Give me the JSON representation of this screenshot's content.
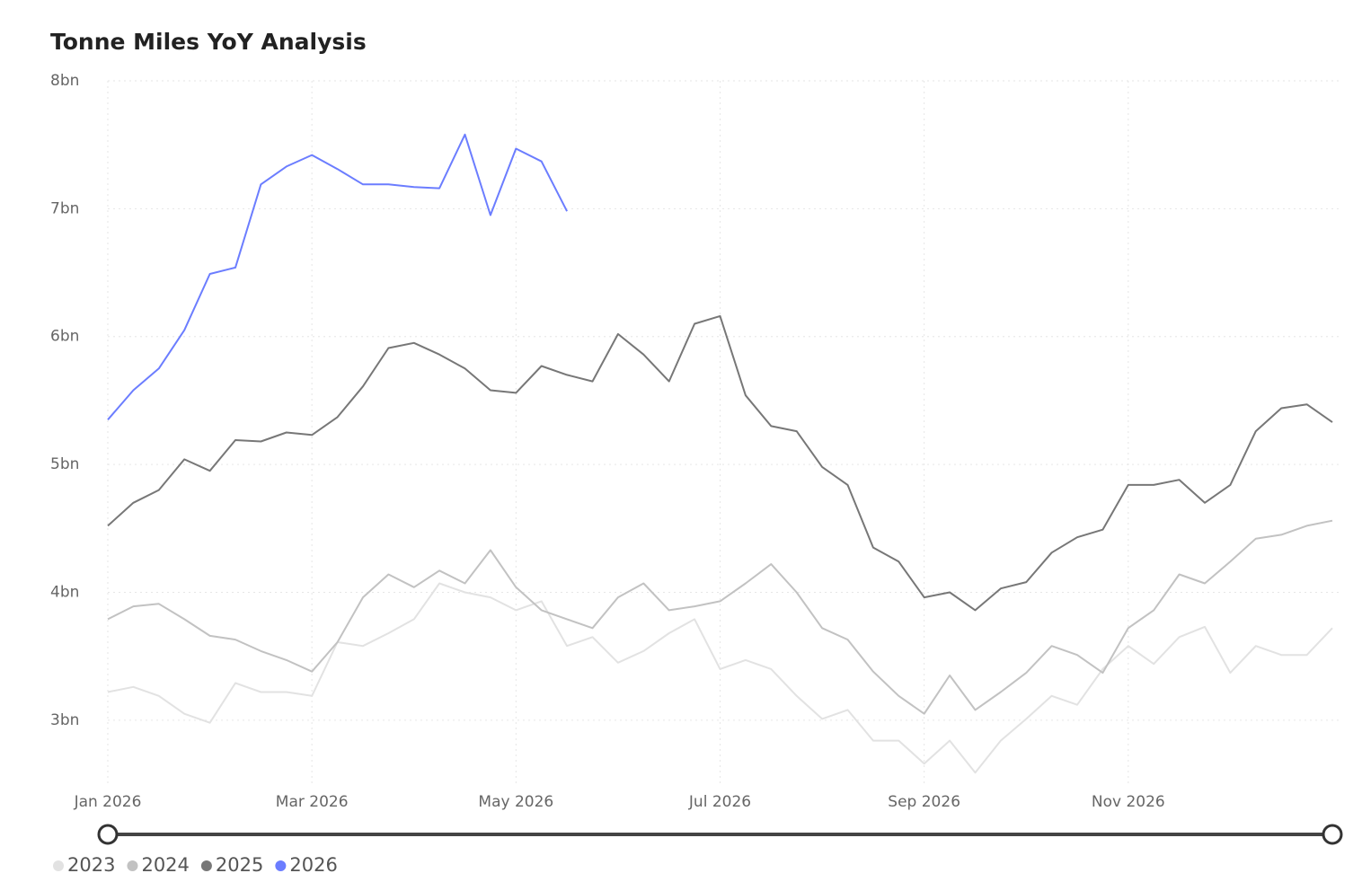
{
  "chart_data": {
    "type": "line",
    "title": "Tonne Miles YoY Analysis",
    "categories": [
      "Jan 2026",
      null,
      null,
      null,
      null,
      null,
      null,
      null,
      "Mar 2026",
      null,
      null,
      null,
      null,
      null,
      null,
      null,
      "May 2026",
      null,
      null,
      null,
      null,
      null,
      null,
      null,
      "Jul 2026",
      null,
      null,
      null,
      null,
      null,
      null,
      null,
      "Sep 2026",
      null,
      null,
      null,
      null,
      null,
      null,
      null,
      "Nov 2026",
      null,
      null,
      null,
      null,
      null,
      null,
      null,
      null
    ],
    "series": [
      {
        "name": "2023",
        "color": "#e2e2e2",
        "values": [
          3.22,
          3.26,
          3.19,
          3.05,
          2.98,
          3.29,
          3.22,
          3.22,
          3.19,
          3.61,
          3.58,
          3.68,
          3.79,
          4.07,
          4.0,
          3.96,
          3.86,
          3.93,
          3.58,
          3.65,
          3.45,
          3.54,
          3.68,
          3.79,
          3.4,
          3.47,
          3.4,
          3.19,
          3.01,
          3.08,
          2.84,
          2.84,
          2.66,
          2.84,
          2.59,
          2.84,
          3.01,
          3.19,
          3.12,
          3.4,
          3.58,
          3.44,
          3.65,
          3.73,
          3.37,
          3.58,
          3.51,
          3.51,
          3.72
        ]
      },
      {
        "name": "2024",
        "color": "#c2c2c2",
        "values": [
          3.79,
          3.89,
          3.91,
          3.79,
          3.66,
          3.63,
          3.54,
          3.47,
          3.38,
          3.61,
          3.96,
          4.14,
          4.04,
          4.17,
          4.07,
          4.33,
          4.04,
          3.86,
          3.79,
          3.72,
          3.96,
          4.07,
          3.86,
          3.89,
          3.93,
          4.07,
          4.22,
          4.0,
          3.72,
          3.63,
          3.38,
          3.19,
          3.05,
          3.35,
          3.08,
          3.22,
          3.37,
          3.58,
          3.51,
          3.37,
          3.72,
          3.86,
          4.14,
          4.07,
          4.24,
          4.42,
          4.45,
          4.52,
          4.56
        ]
      },
      {
        "name": "2025",
        "color": "#777777",
        "values": [
          4.52,
          4.7,
          4.8,
          5.04,
          4.95,
          5.19,
          5.18,
          5.25,
          5.23,
          5.37,
          5.61,
          5.91,
          5.95,
          5.86,
          5.75,
          5.58,
          5.56,
          5.77,
          5.7,
          5.65,
          6.02,
          5.86,
          5.65,
          6.1,
          6.16,
          5.54,
          5.3,
          5.26,
          4.98,
          4.84,
          4.35,
          4.24,
          3.96,
          4.0,
          3.86,
          4.03,
          4.08,
          4.31,
          4.43,
          4.49,
          4.84,
          4.84,
          4.88,
          4.7,
          4.84,
          5.26,
          5.44,
          5.47,
          5.33
        ]
      },
      {
        "name": "2026",
        "color": "#6b7dff",
        "values": [
          5.35,
          5.58,
          5.75,
          6.05,
          6.49,
          6.54,
          7.19,
          7.33,
          7.42,
          7.31,
          7.19,
          7.19,
          7.17,
          7.16,
          7.58,
          6.95,
          7.47,
          7.37,
          6.98,
          null,
          null,
          null,
          null,
          null,
          null,
          null,
          null,
          null,
          null,
          null,
          null,
          null,
          null,
          null,
          null,
          null,
          null,
          null,
          null,
          null,
          null,
          null,
          null,
          null,
          null,
          null,
          null,
          null,
          null
        ]
      }
    ],
    "ylim": [
      2.5,
      8
    ],
    "yticks": [
      {
        "value": 3,
        "label": "3bn"
      },
      {
        "value": 4,
        "label": "4bn"
      },
      {
        "value": 5,
        "label": "5bn"
      },
      {
        "value": 6,
        "label": "6bn"
      },
      {
        "value": 7,
        "label": "7bn"
      },
      {
        "value": 8,
        "label": "8bn"
      }
    ],
    "grid": true,
    "legend": "bottom-left"
  }
}
